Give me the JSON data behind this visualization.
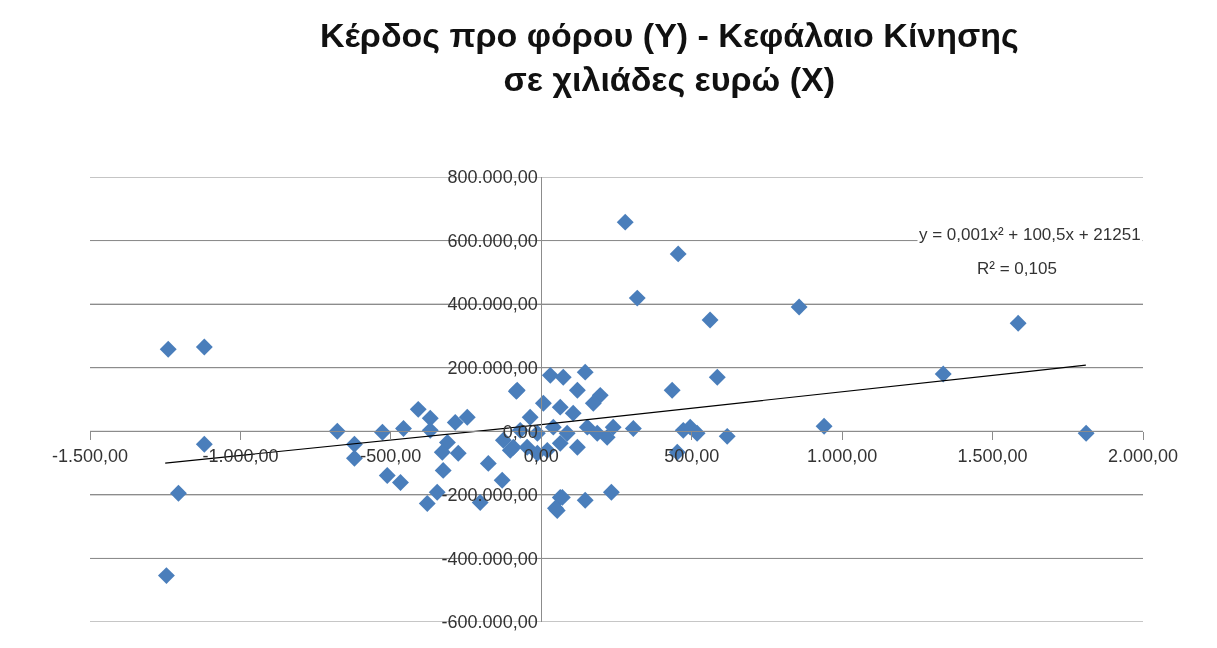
{
  "chart_data": {
    "type": "scatter",
    "title": "Κέρδος προ φόρου (Y) - Κεφάλαιο Κίνησης σε χιλιάδες ευρώ (X)",
    "series": [
      {
        "color": "#4a7ebb",
        "marker": "diamond",
        "x": [
          -1240,
          -1120,
          -1120,
          -1206,
          -1246,
          -678,
          -621,
          -621,
          -528,
          -458,
          -409,
          -369,
          -369,
          -286,
          -246,
          -312,
          -329,
          -276,
          -326,
          -512,
          -468,
          -379,
          -346,
          -203,
          -176,
          -130,
          -83,
          -93,
          63,
          53,
          30,
          73,
          146,
          -80,
          196,
          173,
          120,
          -37,
          7,
          63,
          106,
          -70,
          -13,
          40,
          86,
          153,
          186,
          239,
          -103,
          -47,
          20,
          120,
          219,
          -126,
          -13,
          63,
          306,
          279,
          455,
          319,
          561,
          585,
          435,
          857,
          472,
          518,
          495,
          618,
          452,
          233,
          146,
          70,
          47,
          1336,
          1585,
          940,
          1811
        ],
        "values": [
          258000,
          265000,
          -41000,
          -195000,
          -454000,
          0,
          -41000,
          -85000,
          -3000,
          9000,
          69000,
          41000,
          3000,
          28000,
          44000,
          -35000,
          -66000,
          -69000,
          -123000,
          -139000,
          -161000,
          -227000,
          -192000,
          -224000,
          -101000,
          -154000,
          126000,
          -50000,
          -208000,
          -249000,
          176000,
          170000,
          186000,
          129000,
          113000,
          88000,
          129000,
          44000,
          88000,
          76000,
          57000,
          3000,
          -6000,
          13000,
          -6000,
          13000,
          -6000,
          13000,
          -60000,
          -50000,
          -60000,
          -50000,
          -19000,
          -28000,
          -69000,
          -38000,
          9000,
          658000,
          558000,
          419000,
          350000,
          170000,
          129000,
          391000,
          3000,
          -6000,
          13000,
          -16000,
          -66000,
          -192000,
          -217000,
          -208000,
          -242000,
          180000,
          340000,
          16000,
          -6000
        ]
      },
      {
        "type": "line",
        "color": "#000000",
        "marker": "none",
        "line_style": "solid",
        "x": [
          -1250,
          0,
          1810
        ],
        "values": [
          -100000,
          21000,
          208000
        ]
      }
    ],
    "annotations": [
      "y = 0,001x² + 100,5x + 21251",
      "R² = 0,105"
    ],
    "xlim": [
      -1500,
      2000
    ],
    "xticks": [
      {
        "value": -1500,
        "label": "-1.500,00"
      },
      {
        "value": -1000,
        "label": "-1.000,00"
      },
      {
        "value": -500,
        "label": "-500,00"
      },
      {
        "value": 0,
        "label": "0,00"
      },
      {
        "value": 500,
        "label": "500,00"
      },
      {
        "value": 1000,
        "label": "1.000,00"
      },
      {
        "value": 1500,
        "label": "1.500,00"
      },
      {
        "value": 2000,
        "label": "2.000,00"
      }
    ],
    "ylim": [
      -600000,
      800000
    ],
    "yticks": [
      {
        "value": -600000,
        "label": "-600.000,00"
      },
      {
        "value": -400000,
        "label": "-400.000,00"
      },
      {
        "value": -200000,
        "label": "-200.000,00"
      },
      {
        "value": 0,
        "label": "0,00"
      },
      {
        "value": 200000,
        "label": "200.000,00"
      },
      {
        "value": 400000,
        "label": "400.000,00"
      },
      {
        "value": 600000,
        "label": "600.000,00"
      },
      {
        "value": 800000,
        "label": "800.000,00"
      }
    ],
    "grid": "y"
  }
}
